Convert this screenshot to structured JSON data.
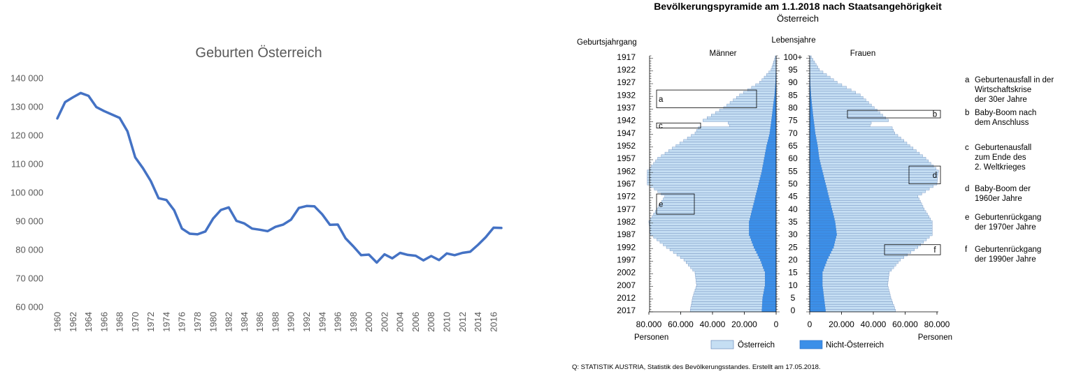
{
  "chart_data": [
    {
      "type": "line",
      "title": "Geburten Österreich",
      "xlabel": "",
      "ylabel": "",
      "x": [
        1960,
        1961,
        1962,
        1963,
        1964,
        1965,
        1966,
        1967,
        1968,
        1969,
        1970,
        1971,
        1972,
        1973,
        1974,
        1975,
        1976,
        1977,
        1978,
        1979,
        1980,
        1981,
        1982,
        1983,
        1984,
        1985,
        1986,
        1987,
        1988,
        1989,
        1990,
        1991,
        1992,
        1993,
        1994,
        1995,
        1996,
        1997,
        1998,
        1999,
        2000,
        2001,
        2002,
        2003,
        2004,
        2005,
        2006,
        2007,
        2008,
        2009,
        2010,
        2011,
        2012,
        2013,
        2014,
        2015,
        2016,
        2017
      ],
      "series": [
        {
          "name": "",
          "color": "#4472C4",
          "values": [
            125900,
            131600,
            133300,
            134800,
            133800,
            129900,
            128500,
            127300,
            126100,
            121400,
            112300,
            108500,
            104000,
            98000,
            97400,
            93800,
            87400,
            85600,
            85400,
            86400,
            90900,
            93900,
            94800,
            90100,
            89200,
            87400,
            87000,
            86500,
            88000,
            88800,
            90500,
            94600,
            95300,
            95200,
            92400,
            88700,
            88800,
            84000,
            81200,
            78100,
            78300,
            75500,
            78400,
            77000,
            78900,
            78200,
            77900,
            76300,
            77800,
            76400,
            78700,
            78100,
            78900,
            79300,
            81700,
            84400,
            87700,
            87600
          ]
        }
      ],
      "xtick_labels": [
        "1960",
        "1962",
        "1964",
        "1966",
        "1968",
        "1970",
        "1972",
        "1974",
        "1976",
        "1978",
        "1980",
        "1982",
        "1984",
        "1986",
        "1988",
        "1990",
        "1992",
        "1994",
        "1996",
        "1998",
        "2000",
        "2002",
        "2004",
        "2006",
        "2008",
        "2010",
        "2012",
        "2014",
        "2016"
      ],
      "ytick_labels": [
        "60 000",
        "70 000",
        "80 000",
        "90 000",
        "100 000",
        "110 000",
        "120 000",
        "130 000",
        "140 000"
      ],
      "ylim": [
        60000,
        140000
      ],
      "grid": false,
      "legend": "none"
    },
    {
      "type": "bar",
      "orientation": "horizontal",
      "title": "Bevölkerungspyramide am 1.1.2018 nach Staatsangehörigkeit",
      "subtitle": "Österreich",
      "left_axis_title": "Geburtsjahrgang",
      "center_axis_title": "Lebensjahre",
      "male_label": "Männer",
      "female_label": "Frauen",
      "xlabel_left": "Personen",
      "xlabel_right": "Personen",
      "x_ticks_left": [
        "80.000",
        "60.000",
        "40.000",
        "20.000",
        "0"
      ],
      "x_ticks_right": [
        "0",
        "20.000",
        "40.000",
        "60.000",
        "80.000"
      ],
      "xlim": [
        0,
        80000
      ],
      "birth_year_ticks": [
        "1917",
        "1922",
        "1927",
        "1932",
        "1937",
        "1942",
        "1947",
        "1952",
        "1957",
        "1962",
        "1967",
        "1972",
        "1977",
        "1982",
        "1987",
        "1992",
        "1997",
        "2002",
        "2007",
        "2012",
        "2017"
      ],
      "age_ticks": [
        "100+",
        "95",
        "90",
        "85",
        "80",
        "75",
        "70",
        "65",
        "60",
        "55",
        "50",
        "45",
        "40",
        "35",
        "30",
        "25",
        "20",
        "15",
        "10",
        "5",
        "0"
      ],
      "age_anchors": [
        0,
        5,
        10,
        15,
        20,
        25,
        30,
        35,
        40,
        45,
        50,
        55,
        60,
        65,
        70,
        75,
        80,
        85,
        90,
        95,
        100
      ],
      "male_austrian_anchors": [
        45000,
        44000,
        43000,
        44000,
        48000,
        55000,
        62000,
        63000,
        60000,
        57000,
        70000,
        72000,
        67000,
        57000,
        47000,
        43000,
        31000,
        22000,
        10000,
        3000,
        500
      ],
      "male_foreign_anchors": [
        9000,
        8500,
        7000,
        7000,
        10000,
        14000,
        17000,
        17000,
        15000,
        13000,
        11000,
        9000,
        7500,
        6000,
        4000,
        3000,
        2000,
        1000,
        400,
        150,
        50
      ],
      "female_austrian_anchors": [
        44000,
        42000,
        41000,
        42000,
        46000,
        53000,
        60000,
        61000,
        58000,
        56000,
        70000,
        73000,
        67000,
        58000,
        50000,
        47000,
        39000,
        31000,
        17000,
        6000,
        1000
      ],
      "female_foreign_anchors": [
        10000,
        9000,
        8000,
        8000,
        11000,
        15000,
        17000,
        16000,
        14000,
        12000,
        10000,
        8000,
        6000,
        5000,
        3500,
        2500,
        1600,
        800,
        300,
        120,
        40
      ],
      "dips": [
        {
          "side": "male",
          "age": 73,
          "austrian": 26000
        },
        {
          "side": "male",
          "age": 74,
          "austrian": 27000
        },
        {
          "side": "female",
          "age": 73,
          "austrian": 35000
        },
        {
          "side": "female",
          "age": 74,
          "austrian": 36000
        }
      ],
      "legend_items": [
        {
          "label": "Österreich",
          "color": "#c5def3"
        },
        {
          "label": "Nicht-Österreich",
          "color": "#3c8fe8"
        }
      ],
      "annotations": [
        {
          "letter": "a",
          "side": "male",
          "age_from": 80,
          "age_to": 87,
          "text": [
            "Geburtenausfall in der",
            "Wirtschaftskrise",
            "der  30er Jahre"
          ]
        },
        {
          "letter": "b",
          "side": "female",
          "age_from": 76,
          "age_to": 79,
          "text": [
            "Baby-Boom nach",
            "dem Anschluss"
          ]
        },
        {
          "letter": "c",
          "side": "male",
          "age_from": 72,
          "age_to": 74,
          "text": [
            "Geburtenausfall",
            "zum Ende des",
            "2. Weltkrieges"
          ]
        },
        {
          "letter": "d",
          "side": "female",
          "age_from": 50,
          "age_to": 57,
          "text": [
            "Baby-Boom der",
            "1960er Jahre"
          ]
        },
        {
          "letter": "e",
          "side": "male",
          "age_from": 38,
          "age_to": 46,
          "text": [
            "Geburtenrückgang",
            "der 1970er Jahre"
          ]
        },
        {
          "letter": "f",
          "side": "female",
          "age_from": 22,
          "age_to": 26,
          "text": [
            "Geburtenrückgang",
            "der 1990er Jahre"
          ]
        }
      ],
      "source": "Q: STATISTIK AUSTRIA, Statistik des Bevölkerungsstandes. Erstellt am 17.05.2018."
    }
  ]
}
